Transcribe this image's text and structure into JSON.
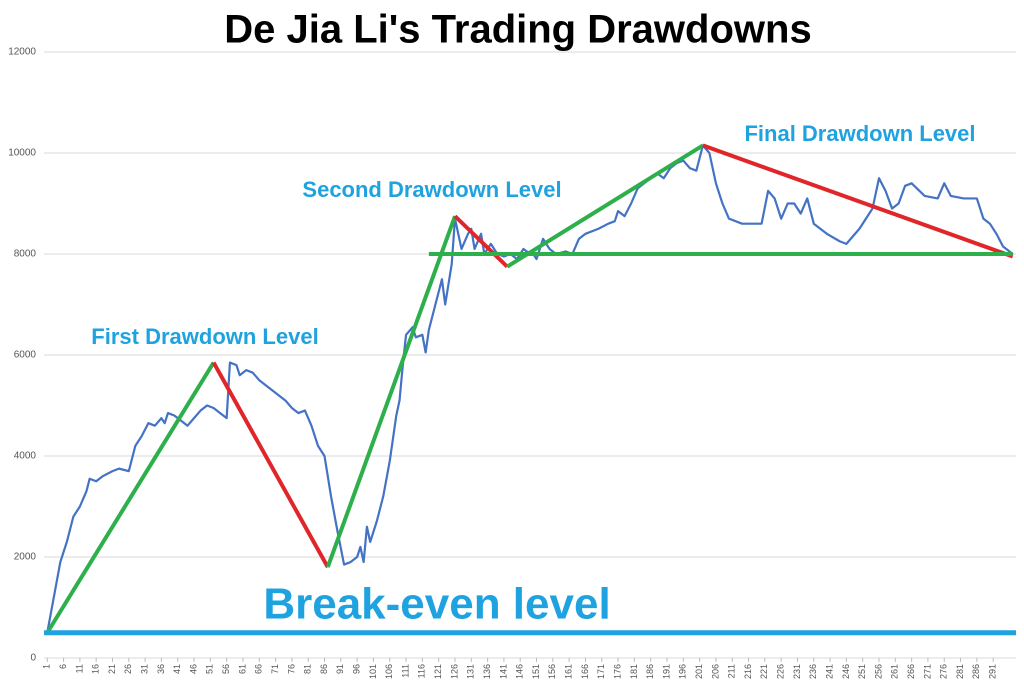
{
  "chart_data": {
    "type": "line",
    "title": "De Jia Li's Trading Drawdowns",
    "x": [
      1,
      3,
      5,
      7,
      9,
      11,
      13,
      14,
      16,
      18,
      21,
      23,
      26,
      28,
      30,
      32,
      34,
      36,
      37,
      38,
      40,
      42,
      44,
      46,
      48,
      50,
      52,
      54,
      56,
      57,
      59,
      60,
      62,
      64,
      66,
      70,
      74,
      76,
      78,
      80,
      82,
      84,
      86,
      88,
      90,
      92,
      94,
      96,
      97,
      98,
      99,
      100,
      102,
      104,
      106,
      108,
      109,
      110,
      111,
      113,
      114,
      116,
      117,
      118,
      120,
      122,
      123,
      125,
      126,
      128,
      130,
      131,
      132,
      134,
      135,
      137,
      139,
      141,
      143,
      145,
      147,
      148,
      150,
      151,
      153,
      155,
      157,
      160,
      162,
      164,
      166,
      170,
      173,
      175,
      176,
      178,
      180,
      182,
      184,
      186,
      188,
      190,
      192,
      194,
      196,
      198,
      200,
      202,
      204,
      206,
      208,
      210,
      214,
      220,
      222,
      224,
      226,
      228,
      230,
      232,
      234,
      236,
      240,
      244,
      246,
      250,
      252,
      254,
      256,
      258,
      260,
      262,
      264,
      266,
      270,
      274,
      276,
      278,
      282,
      286,
      288,
      290,
      292,
      294,
      297
    ],
    "series": [
      {
        "color": "#4472c4",
        "values": [
          500,
          1200,
          1900,
          2300,
          2800,
          3000,
          3300,
          3550,
          3500,
          3600,
          3700,
          3750,
          3700,
          4200,
          4400,
          4650,
          4600,
          4750,
          4650,
          4850,
          4800,
          4700,
          4600,
          4750,
          4900,
          5000,
          4950,
          4850,
          4750,
          5850,
          5800,
          5600,
          5700,
          5650,
          5500,
          5300,
          5100,
          4950,
          4850,
          4900,
          4600,
          4200,
          4000,
          3200,
          2500,
          1850,
          1900,
          2000,
          2200,
          1900,
          2600,
          2300,
          2700,
          3200,
          3900,
          4800,
          5100,
          5800,
          6400,
          6550,
          6350,
          6400,
          6050,
          6500,
          7000,
          7500,
          7000,
          7800,
          8700,
          8100,
          8400,
          8500,
          8100,
          8400,
          8000,
          8200,
          8000,
          7950,
          8000,
          7900,
          8100,
          8050,
          8000,
          7900,
          8300,
          8100,
          8000,
          8050,
          8000,
          8300,
          8400,
          8500,
          8600,
          8650,
          8850,
          8750,
          9000,
          9300,
          9400,
          9500,
          9600,
          9500,
          9700,
          9800,
          9850,
          9700,
          9650,
          10150,
          10000,
          9400,
          9000,
          8700,
          8600,
          8600,
          9250,
          9100,
          8700,
          9000,
          9000,
          8800,
          9100,
          8600,
          8400,
          8250,
          8200,
          8500,
          8700,
          8900,
          9500,
          9250,
          8900,
          9000,
          9350,
          9400,
          9150,
          9100,
          9400,
          9150,
          9100,
          9100,
          8700,
          8600,
          8400,
          8150,
          8000
        ]
      }
    ],
    "segments": [
      {
        "color": "#2db04b",
        "x": [
          1,
          52
        ],
        "values": [
          500,
          5850
        ]
      },
      {
        "color": "#e0262b",
        "x": [
          52,
          87
        ],
        "values": [
          5850,
          1800
        ]
      },
      {
        "color": "#2db04b",
        "x": [
          87,
          126
        ],
        "values": [
          1800,
          8750
        ]
      },
      {
        "color": "#e0262b",
        "x": [
          126,
          142
        ],
        "values": [
          8750,
          7750
        ]
      },
      {
        "color": "#2db04b",
        "x": [
          142,
          202
        ],
        "values": [
          7750,
          10150
        ]
      },
      {
        "color": "#e0262b",
        "x": [
          202,
          297
        ],
        "values": [
          10150,
          7950
        ]
      },
      {
        "color": "#2db04b",
        "x": [
          118,
          297
        ],
        "values": [
          8000,
          8000
        ]
      },
      {
        "color": "#1ea2e0",
        "x": [
          0,
          298
        ],
        "values": [
          500,
          500
        ]
      }
    ],
    "annotations": [
      "First Drawdown Level",
      "Second Drawdown Level",
      "Final Drawdown Level",
      "Break-even level"
    ],
    "xlim": [
      0,
      298
    ],
    "ylim": [
      0,
      12000
    ],
    "xticks": [
      1,
      6,
      11,
      16,
      21,
      26,
      31,
      36,
      41,
      46,
      51,
      56,
      61,
      66,
      71,
      76,
      81,
      86,
      91,
      96,
      101,
      106,
      111,
      116,
      121,
      126,
      131,
      136,
      141,
      146,
      151,
      156,
      161,
      166,
      171,
      176,
      181,
      186,
      191,
      196,
      201,
      206,
      211,
      216,
      221,
      226,
      231,
      236,
      241,
      246,
      251,
      256,
      261,
      266,
      271,
      276,
      281,
      286,
      291
    ],
    "yticks": [
      0,
      2000,
      4000,
      6000,
      8000,
      10000,
      12000
    ],
    "grid": true
  }
}
